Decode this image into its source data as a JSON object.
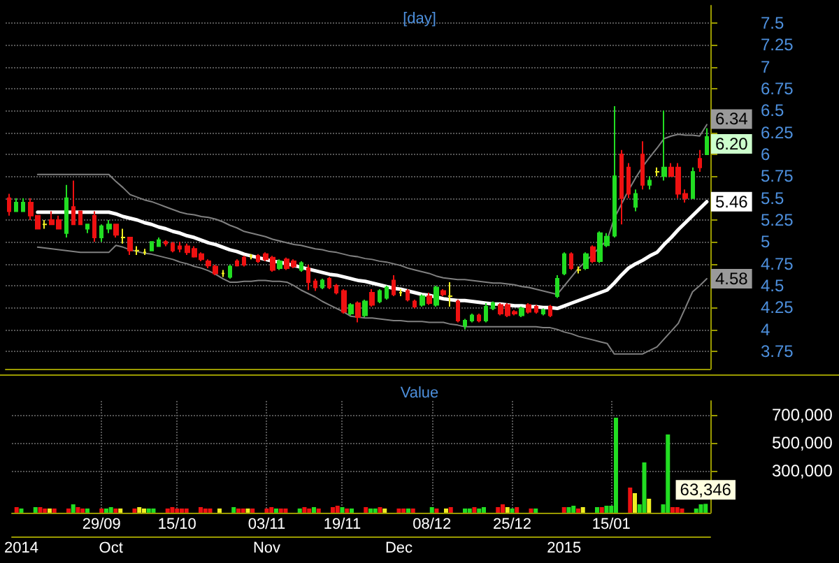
{
  "chart_data": [
    {
      "type": "candlestick",
      "title": "[day]",
      "categories": [
        null,
        null,
        null,
        null,
        null,
        null,
        null,
        null,
        null,
        null,
        null,
        null,
        null,
        null,
        null,
        null,
        null,
        null,
        null,
        null,
        null,
        null,
        null,
        null,
        null,
        null,
        null,
        null,
        null,
        null,
        null,
        null,
        null,
        null,
        null,
        null,
        null,
        null,
        null,
        null,
        null,
        null,
        null,
        null,
        null,
        null,
        null,
        null,
        null,
        null,
        null,
        null,
        null,
        null,
        null,
        null,
        null,
        null,
        null,
        null,
        null,
        null,
        null,
        null,
        null,
        null,
        null,
        null,
        null,
        null,
        null,
        null,
        null,
        null,
        null,
        null,
        null,
        null,
        null,
        null,
        null,
        null,
        null,
        null,
        null,
        null,
        null,
        null,
        null,
        null,
        null,
        null,
        null,
        null,
        null,
        null,
        null,
        null,
        null
      ],
      "ohlc": [
        [
          5.5,
          5.55,
          5.3,
          5.35
        ],
        [
          5.35,
          5.5,
          5.35,
          5.45
        ],
        [
          5.35,
          5.5,
          5.35,
          5.45
        ],
        [
          5.45,
          5.5,
          5.25,
          5.3
        ],
        [
          5.3,
          5.3,
          5.15,
          5.15
        ],
        [
          5.2,
          5.25,
          5.15,
          5.2
        ],
        [
          5.25,
          5.35,
          5.2,
          5.2
        ],
        [
          5.25,
          5.3,
          5.15,
          5.15
        ],
        [
          5.1,
          5.65,
          5.05,
          5.5
        ],
        [
          5.4,
          5.7,
          5.2,
          5.2
        ],
        [
          5.35,
          5.35,
          5.2,
          5.2
        ],
        [
          5.15,
          5.2,
          5.1,
          5.2
        ],
        [
          5.3,
          5.35,
          5.0,
          5.05
        ],
        [
          5.05,
          5.2,
          5.0,
          5.18
        ],
        [
          5.15,
          5.25,
          5.1,
          5.2
        ],
        [
          5.2,
          5.2,
          5.05,
          5.08
        ],
        [
          5.05,
          5.15,
          4.98,
          5.05
        ],
        [
          5.05,
          5.05,
          4.85,
          4.9
        ],
        [
          4.9,
          4.95,
          4.85,
          4.9
        ],
        [
          4.88,
          4.92,
          4.85,
          4.88
        ],
        [
          4.9,
          5.0,
          4.9,
          5.0
        ],
        [
          4.95,
          5.05,
          4.95,
          5.02
        ],
        [
          5.0,
          5.02,
          4.95,
          4.98
        ],
        [
          4.98,
          5.0,
          4.88,
          4.9
        ],
        [
          4.95,
          5.0,
          4.88,
          4.92
        ],
        [
          4.95,
          4.98,
          4.85,
          4.88
        ],
        [
          4.92,
          4.95,
          4.82,
          4.83
        ],
        [
          4.86,
          4.88,
          4.78,
          4.8
        ],
        [
          4.78,
          4.8,
          4.7,
          4.73
        ],
        [
          4.72,
          4.74,
          4.62,
          4.64
        ],
        [
          4.64,
          4.68,
          4.6,
          4.64
        ],
        [
          4.6,
          4.74,
          4.58,
          4.72
        ],
        [
          4.78,
          4.8,
          4.72,
          4.73
        ],
        [
          4.82,
          4.84,
          4.72,
          4.74
        ],
        [
          4.84,
          4.86,
          4.8,
          4.84
        ],
        [
          4.84,
          4.86,
          4.76,
          4.78
        ],
        [
          4.86,
          4.88,
          4.78,
          4.8
        ],
        [
          4.82,
          4.84,
          4.66,
          4.68
        ],
        [
          4.7,
          4.8,
          4.68,
          4.78
        ],
        [
          4.8,
          4.82,
          4.68,
          4.7
        ],
        [
          4.78,
          4.8,
          4.7,
          4.72
        ],
        [
          4.68,
          4.78,
          4.66,
          4.76
        ],
        [
          4.7,
          4.74,
          4.45,
          4.54
        ],
        [
          4.55,
          4.58,
          4.44,
          4.48
        ],
        [
          4.48,
          4.58,
          4.46,
          4.56
        ],
        [
          4.58,
          4.6,
          4.46,
          4.48
        ],
        [
          4.5,
          4.52,
          4.4,
          4.42
        ],
        [
          4.44,
          4.46,
          4.18,
          4.2
        ],
        [
          4.18,
          4.3,
          4.16,
          4.28
        ],
        [
          4.3,
          4.32,
          4.08,
          4.14
        ],
        [
          4.16,
          4.34,
          4.14,
          4.32
        ],
        [
          4.42,
          4.46,
          4.26,
          4.28
        ],
        [
          4.32,
          4.46,
          4.3,
          4.44
        ],
        [
          4.36,
          4.5,
          4.34,
          4.48
        ],
        [
          4.56,
          4.62,
          4.38,
          4.4
        ],
        [
          4.42,
          4.46,
          4.38,
          4.42
        ],
        [
          4.44,
          4.46,
          4.32,
          4.34
        ],
        [
          4.32,
          4.34,
          4.24,
          4.26
        ],
        [
          4.28,
          4.4,
          4.26,
          4.38
        ],
        [
          4.38,
          4.42,
          4.28,
          4.3
        ],
        [
          4.28,
          4.5,
          4.26,
          4.48
        ],
        [
          4.44,
          4.46,
          4.38,
          4.4
        ],
        [
          4.38,
          4.54,
          4.26,
          4.38
        ],
        [
          4.32,
          4.34,
          4.08,
          4.1
        ],
        [
          4.04,
          4.12,
          4.0,
          4.1
        ],
        [
          4.1,
          4.18,
          4.08,
          4.16
        ],
        [
          4.16,
          4.18,
          4.08,
          4.1
        ],
        [
          4.1,
          4.3,
          4.08,
          4.26
        ],
        [
          4.24,
          4.32,
          4.22,
          4.3
        ],
        [
          4.28,
          4.3,
          4.16,
          4.18
        ],
        [
          4.28,
          4.3,
          4.14,
          4.16
        ],
        [
          4.2,
          4.22,
          4.16,
          4.18
        ],
        [
          4.16,
          4.26,
          4.14,
          4.24
        ],
        [
          4.28,
          4.3,
          4.18,
          4.2
        ],
        [
          4.26,
          4.28,
          4.18,
          4.2
        ],
        [
          4.18,
          4.24,
          4.16,
          4.22
        ],
        [
          4.26,
          4.28,
          4.14,
          4.16
        ],
        [
          4.38,
          4.62,
          4.36,
          4.58
        ],
        [
          4.64,
          4.88,
          4.62,
          4.86
        ],
        [
          4.86,
          4.88,
          4.68,
          4.7
        ],
        [
          4.68,
          4.72,
          4.64,
          4.68
        ],
        [
          4.7,
          4.88,
          4.68,
          4.86
        ],
        [
          4.94,
          4.96,
          4.76,
          4.78
        ],
        [
          4.78,
          5.12,
          4.76,
          5.1
        ],
        [
          4.96,
          5.1,
          4.94,
          5.06
        ],
        [
          5.07,
          6.55,
          5.05,
          5.75
        ],
        [
          6.0,
          6.05,
          5.2,
          5.5
        ],
        [
          5.85,
          5.9,
          5.5,
          5.55
        ],
        [
          5.4,
          5.6,
          5.35,
          5.55
        ],
        [
          6.0,
          6.15,
          5.6,
          5.65
        ],
        [
          5.65,
          5.75,
          5.6,
          5.7
        ],
        [
          5.8,
          5.85,
          5.75,
          5.8
        ],
        [
          5.75,
          6.5,
          5.7,
          5.85
        ],
        [
          5.85,
          5.9,
          5.75,
          5.75
        ],
        [
          5.85,
          5.9,
          5.5,
          5.55
        ],
        [
          5.55,
          5.6,
          5.45,
          5.5
        ],
        [
          5.5,
          5.85,
          5.5,
          5.8
        ],
        [
          5.95,
          6.05,
          5.8,
          5.85
        ],
        [
          6.0,
          6.3,
          6.0,
          6.2
        ]
      ],
      "series": [
        {
          "type": "line",
          "color": "#808080",
          "values": [
            null,
            null,
            null,
            null,
            5.77,
            5.77,
            5.77,
            5.77,
            5.77,
            5.77,
            5.77,
            5.77,
            5.77,
            5.77,
            5.77,
            5.69,
            5.62,
            5.54,
            5.51,
            5.48,
            5.46,
            5.43,
            5.4,
            5.37,
            5.34,
            5.32,
            5.31,
            5.29,
            5.28,
            5.26,
            5.23,
            5.19,
            5.16,
            5.12,
            5.1,
            5.08,
            5.06,
            5.03,
            5.01,
            4.99,
            4.97,
            4.96,
            4.94,
            4.92,
            4.91,
            4.89,
            4.88,
            4.86,
            4.84,
            4.83,
            4.81,
            4.8,
            4.78,
            4.77,
            4.75,
            4.73,
            4.7,
            4.68,
            4.66,
            4.64,
            4.61,
            4.59,
            4.58,
            4.57,
            4.57,
            4.56,
            4.55,
            4.54,
            4.53,
            4.53,
            4.52,
            4.51,
            4.49,
            4.48,
            4.46,
            4.44,
            4.42,
            4.4,
            4.5,
            4.6,
            4.7,
            4.78,
            4.86,
            4.94,
            5.02,
            5.27,
            5.43,
            5.59,
            5.73,
            5.86,
            5.97,
            6.07,
            6.18,
            6.21,
            6.23,
            6.22,
            6.22,
            6.21,
            6.34
          ],
          "value_labels": [
            null,
            null,
            null,
            null,
            null,
            null,
            null,
            null,
            null,
            null,
            null,
            null,
            null,
            null,
            null,
            null,
            null,
            null,
            null,
            null,
            null,
            null,
            null,
            null,
            null,
            null,
            null,
            null,
            null,
            null,
            null,
            null,
            null,
            null,
            null,
            null,
            null,
            null,
            null,
            null,
            null,
            null,
            null,
            null,
            null,
            null,
            null,
            null,
            null,
            null,
            null,
            null,
            null,
            null,
            null,
            null,
            null,
            null,
            null,
            null,
            null,
            null,
            null,
            null,
            null,
            null,
            null,
            null,
            null,
            null,
            null,
            null,
            null,
            null,
            null,
            null,
            null,
            null,
            null,
            null,
            null,
            null,
            null,
            null,
            null,
            null,
            null,
            null,
            null,
            null,
            null,
            null,
            null,
            null,
            null,
            null,
            null,
            null,
            "6.34"
          ]
        },
        {
          "type": "line",
          "color": "#ffffff",
          "values": [
            null,
            null,
            null,
            null,
            5.34,
            5.34,
            5.34,
            5.34,
            5.34,
            5.34,
            5.34,
            5.34,
            5.34,
            5.34,
            5.34,
            5.32,
            5.29,
            5.27,
            5.25,
            5.22,
            5.2,
            5.17,
            5.15,
            5.12,
            5.1,
            5.07,
            5.05,
            5.02,
            4.99,
            4.97,
            4.94,
            4.91,
            4.89,
            4.86,
            4.84,
            4.82,
            4.8,
            4.78,
            4.77,
            4.75,
            4.73,
            4.71,
            4.69,
            4.67,
            4.65,
            4.63,
            4.62,
            4.6,
            4.58,
            4.56,
            4.55,
            4.53,
            4.51,
            4.49,
            4.47,
            4.46,
            4.44,
            4.42,
            4.4,
            4.39,
            4.37,
            4.35,
            4.34,
            4.33,
            4.33,
            4.32,
            4.31,
            4.3,
            4.29,
            4.29,
            4.28,
            4.27,
            4.27,
            4.26,
            4.26,
            4.25,
            4.25,
            4.24,
            4.27,
            4.3,
            4.33,
            4.36,
            4.39,
            4.42,
            4.45,
            4.53,
            4.62,
            4.7,
            4.75,
            4.79,
            4.84,
            4.88,
            4.97,
            5.05,
            5.14,
            5.22,
            5.3,
            5.38,
            5.46
          ],
          "value_labels": [
            null,
            null,
            null,
            null,
            null,
            null,
            null,
            null,
            null,
            null,
            null,
            null,
            null,
            null,
            null,
            null,
            null,
            null,
            null,
            null,
            null,
            null,
            null,
            null,
            null,
            null,
            null,
            null,
            null,
            null,
            null,
            null,
            null,
            null,
            null,
            null,
            null,
            null,
            null,
            null,
            null,
            null,
            null,
            null,
            null,
            null,
            null,
            null,
            null,
            null,
            null,
            null,
            null,
            null,
            null,
            null,
            null,
            null,
            null,
            null,
            null,
            null,
            null,
            null,
            null,
            null,
            null,
            null,
            null,
            null,
            null,
            null,
            null,
            null,
            null,
            null,
            null,
            null,
            null,
            null,
            null,
            null,
            null,
            null,
            null,
            null,
            null,
            null,
            null,
            null,
            null,
            null,
            null,
            null,
            null,
            null,
            null,
            null,
            "5.46"
          ]
        },
        {
          "type": "line",
          "color": "#808080",
          "values": [
            null,
            null,
            null,
            null,
            4.94,
            4.93,
            4.92,
            4.91,
            4.9,
            4.89,
            4.88,
            4.88,
            4.88,
            4.88,
            4.88,
            4.96,
            4.94,
            4.91,
            4.89,
            4.87,
            4.86,
            4.84,
            4.82,
            4.8,
            4.77,
            4.75,
            4.72,
            4.7,
            4.67,
            4.63,
            4.58,
            4.54,
            4.54,
            4.55,
            4.55,
            4.56,
            4.56,
            4.55,
            4.55,
            4.54,
            4.5,
            4.45,
            4.41,
            4.37,
            4.32,
            4.28,
            4.24,
            4.2,
            4.15,
            4.14,
            4.13,
            4.13,
            4.12,
            4.11,
            4.1,
            4.1,
            4.09,
            4.09,
            4.09,
            4.08,
            4.08,
            4.08,
            4.06,
            4.05,
            4.03,
            4.03,
            4.03,
            4.03,
            4.03,
            4.03,
            4.03,
            4.03,
            4.03,
            4.03,
            4.03,
            4.02,
            4.02,
            4.0,
            3.97,
            3.95,
            3.92,
            3.9,
            3.88,
            3.86,
            3.84,
            3.72,
            3.72,
            3.72,
            3.72,
            3.72,
            3.76,
            3.8,
            3.89,
            3.98,
            4.07,
            4.25,
            4.43,
            4.5,
            4.58
          ],
          "value_labels": [
            null,
            null,
            null,
            null,
            null,
            null,
            null,
            null,
            null,
            null,
            null,
            null,
            null,
            null,
            null,
            null,
            null,
            null,
            null,
            null,
            null,
            null,
            null,
            null,
            null,
            null,
            null,
            null,
            null,
            null,
            null,
            null,
            null,
            null,
            null,
            null,
            null,
            null,
            null,
            null,
            null,
            null,
            null,
            null,
            null,
            null,
            null,
            null,
            null,
            null,
            null,
            null,
            null,
            null,
            null,
            null,
            null,
            null,
            null,
            null,
            null,
            null,
            null,
            null,
            null,
            null,
            null,
            null,
            null,
            null,
            null,
            null,
            null,
            null,
            null,
            null,
            null,
            null,
            null,
            null,
            null,
            null,
            null,
            null,
            null,
            null,
            null,
            null,
            null,
            null,
            null,
            null,
            null,
            null,
            null,
            null,
            null,
            null,
            "4.58"
          ]
        }
      ],
      "annotations": [
        "6.20"
      ],
      "ylim": [
        3.55,
        7.7
      ],
      "yticks": [
        3.75,
        4,
        4.25,
        4.5,
        4.75,
        5,
        5.25,
        5.5,
        5.75,
        6,
        6.25,
        6.5,
        6.75,
        7,
        7.25,
        7.5
      ],
      "grid": "y",
      "tick_labels": "y"
    },
    {
      "type": "bar",
      "title": "Value",
      "x": [
        "2014-09-11",
        "2014-09-12",
        "2014-09-15",
        "2014-09-16",
        "2014-09-17",
        "2014-09-18",
        "2014-09-19",
        "2014-09-22",
        "2014-09-23",
        "2014-09-24",
        "2014-09-25",
        "2014-09-26",
        "2014-09-29",
        "2014-09-30",
        "2014-10-01",
        "2014-10-02",
        "2014-10-03",
        "2014-10-06",
        "2014-10-07",
        "2014-10-08",
        "2014-10-09",
        "2014-10-10",
        "2014-10-13",
        "2014-10-14",
        "2014-10-15",
        "2014-10-16",
        "2014-10-17",
        "2014-10-20",
        "2014-10-21",
        "2014-10-22",
        "2014-10-24",
        "2014-10-27",
        "2014-10-28",
        "2014-10-29",
        "2014-10-30",
        "2014-10-31",
        "2014-11-03",
        "2014-11-04",
        "2014-11-05",
        "2014-11-06",
        "2014-11-07",
        "2014-11-10",
        "2014-11-11",
        "2014-11-12",
        "2014-11-13",
        "2014-11-14",
        "2014-11-17",
        "2014-11-18",
        "2014-11-19",
        "2014-11-20",
        "2014-11-21",
        "2014-11-24",
        "2014-11-25",
        "2014-11-26",
        "2014-11-27",
        "2014-11-28",
        "2014-12-01",
        "2014-12-02",
        "2014-12-03",
        "2014-12-04",
        "2014-12-08",
        "2014-12-09",
        "2014-12-11",
        "2014-12-12",
        "2014-12-15",
        "2014-12-16",
        "2014-12-17",
        "2014-12-18",
        "2014-12-19",
        "2014-12-22",
        "2014-12-23",
        "2014-12-24",
        "2014-12-25",
        "2014-12-26",
        "2014-12-29",
        "2014-12-30",
        "2015-01-05",
        "2015-01-06",
        "2015-01-07",
        "2015-01-08",
        "2015-01-09",
        "2015-01-12",
        "2015-01-13",
        "2015-01-14",
        "2015-01-15",
        "2015-01-16",
        "2015-01-19",
        "2015-01-20",
        "2015-01-21",
        "2015-01-22",
        "2015-01-23",
        "2015-01-26",
        "2015-01-27",
        "2015-01-28",
        "2015-01-29",
        "2015-01-30",
        "2015-02-02",
        "2015-02-03",
        "2015-02-04"
      ],
      "values": [
        40000,
        30000,
        40000,
        40000,
        30000,
        30000,
        30000,
        30000,
        60000,
        40000,
        30000,
        30000,
        30000,
        30000,
        40000,
        30000,
        30000,
        30000,
        40000,
        30000,
        30000,
        30000,
        30000,
        40000,
        30000,
        30000,
        30000,
        40000,
        30000,
        30000,
        30000,
        40000,
        30000,
        30000,
        30000,
        30000,
        30000,
        40000,
        30000,
        30000,
        30000,
        30000,
        40000,
        30000,
        40000,
        30000,
        40000,
        50000,
        40000,
        30000,
        30000,
        40000,
        30000,
        30000,
        40000,
        30000,
        30000,
        30000,
        30000,
        30000,
        40000,
        30000,
        30000,
        40000,
        30000,
        30000,
        40000,
        30000,
        40000,
        40000,
        60000,
        40000,
        30000,
        40000,
        30000,
        30000,
        40000,
        40000,
        50000,
        30000,
        40000,
        40000,
        40000,
        50000,
        50000,
        680000,
        180000,
        140000,
        60000,
        360000,
        100000,
        60000,
        560000,
        40000,
        40000,
        30000,
        30000,
        60000,
        63346
      ],
      "colors": [
        "#ee1111",
        "#22dd22",
        "#22dd22",
        "#ee1111",
        "#ee1111",
        "#eeee22",
        "#ee1111",
        "#ee1111",
        "#22dd22",
        "#ee1111",
        "#ee1111",
        "#22dd22",
        "#ee1111",
        "#22dd22",
        "#22dd22",
        "#ee1111",
        "#eeee22",
        "#ee1111",
        "#eeee22",
        "#eeee22",
        "#22dd22",
        "#22dd22",
        "#ee1111",
        "#ee1111",
        "#ee1111",
        "#ee1111",
        "#ee1111",
        "#ee1111",
        "#ee1111",
        "#ee1111",
        "#eeee22",
        "#22dd22",
        "#ee1111",
        "#ee1111",
        "#eeee22",
        "#ee1111",
        "#ee1111",
        "#ee1111",
        "#22dd22",
        "#ee1111",
        "#ee1111",
        "#22dd22",
        "#ee1111",
        "#ee1111",
        "#22dd22",
        "#ee1111",
        "#ee1111",
        "#ee1111",
        "#22dd22",
        "#ee1111",
        "#22dd22",
        "#ee1111",
        "#22dd22",
        "#22dd22",
        "#ee1111",
        "#eeee22",
        "#ee1111",
        "#ee1111",
        "#22dd22",
        "#ee1111",
        "#22dd22",
        "#ee1111",
        "#eeee22",
        "#ee1111",
        "#22dd22",
        "#22dd22",
        "#ee1111",
        "#22dd22",
        "#22dd22",
        "#ee1111",
        "#ee1111",
        "#eeee22",
        "#22dd22",
        "#ee1111",
        "#ee1111",
        "#22dd22",
        "#ee1111",
        "#22dd22",
        "#22dd22",
        "#ee1111",
        "#eeee22",
        "#22dd22",
        "#ee1111",
        "#22dd22",
        "#22dd22",
        "#22dd22",
        "#ee1111",
        "#eeee22",
        "#22dd22",
        "#22dd22",
        "#eeee22",
        "#22dd22",
        "#22dd22",
        "#ee1111",
        "#ee1111",
        "#ee1111",
        "#22dd22",
        "#22dd22",
        "#22dd22"
      ],
      "value_labels": [
        null,
        null,
        null,
        null,
        null,
        null,
        null,
        null,
        null,
        null,
        null,
        null,
        null,
        null,
        null,
        null,
        null,
        null,
        null,
        null,
        null,
        null,
        null,
        null,
        null,
        null,
        null,
        null,
        null,
        null,
        null,
        null,
        null,
        null,
        null,
        null,
        null,
        null,
        null,
        null,
        null,
        null,
        null,
        null,
        null,
        null,
        null,
        null,
        null,
        null,
        null,
        null,
        null,
        null,
        null,
        null,
        null,
        null,
        null,
        null,
        null,
        null,
        null,
        null,
        null,
        null,
        null,
        null,
        null,
        null,
        null,
        null,
        null,
        null,
        null,
        null,
        null,
        null,
        null,
        null,
        null,
        null,
        null,
        null,
        null,
        null,
        null,
        null,
        null,
        null,
        null,
        null,
        null,
        null,
        null,
        null,
        null,
        null,
        "63,346"
      ],
      "xlim": [
        "2014-09-10",
        "2015-02-05"
      ],
      "xticks": [
        {
          "value": "2014-09-29",
          "label": "29/09"
        },
        {
          "value": "2014-10-15",
          "label": "15/10"
        },
        {
          "value": "2014-11-03",
          "label": "03/11"
        },
        {
          "value": "2014-11-19",
          "label": "19/11"
        },
        {
          "value": "2014-12-08",
          "label": "08/12"
        },
        {
          "value": "2014-12-25",
          "label": "25/12"
        },
        {
          "value": "2015-01-15",
          "label": "15/01"
        }
      ],
      "x2lim": [
        "2014-09-10",
        "2015-02-05"
      ],
      "x2ticks": [
        {
          "value": "2014-09-12",
          "label": "2014"
        },
        {
          "value": "2014-10-01",
          "label": "Oct"
        },
        {
          "value": "2014-11-03",
          "label": "Nov"
        },
        {
          "value": "2014-12-01",
          "label": "Dec"
        },
        {
          "value": "2015-01-05",
          "label": "2015"
        }
      ],
      "ylim": [
        0,
        800000
      ],
      "yticks": [
        {
          "value": 300000,
          "label": "300,000"
        },
        {
          "value": 500000,
          "label": "500,000"
        },
        {
          "value": 700000,
          "label": "700,000"
        }
      ],
      "grid": true
    }
  ]
}
